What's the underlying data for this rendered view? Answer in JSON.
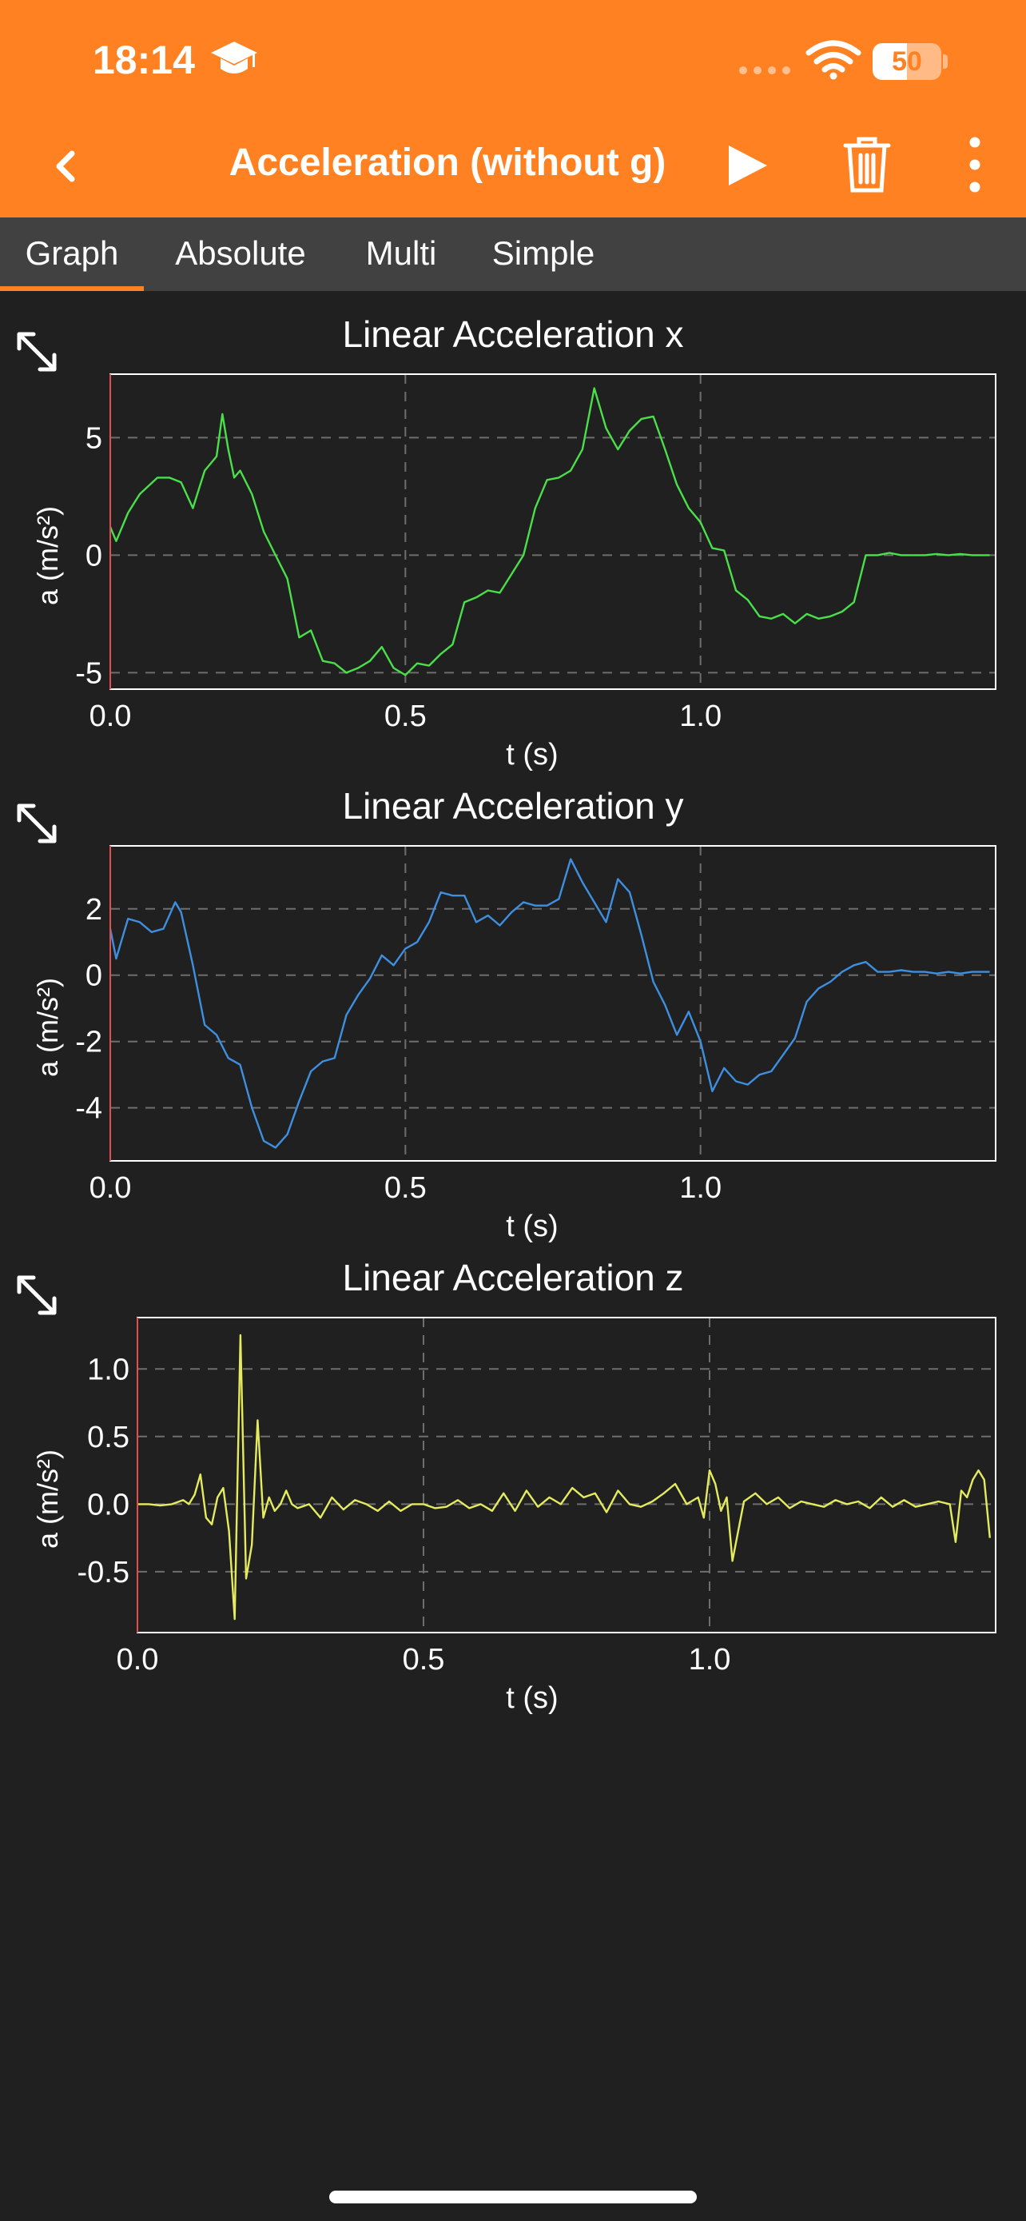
{
  "status_bar": {
    "time": "18:14",
    "battery": "50",
    "battery_level": 0.5,
    "icons": [
      "graduation-cap-icon",
      "cellular-dots-icon",
      "wifi-icon",
      "battery-icon"
    ]
  },
  "app_bar": {
    "title": "Acceleration (without g)",
    "icons": [
      "back-chevron-icon",
      "play-icon",
      "trash-icon",
      "more-vert-icon"
    ]
  },
  "tabs": [
    {
      "label": "Graph",
      "active": true
    },
    {
      "label": "Absolute",
      "active": false
    },
    {
      "label": "Multi",
      "active": false
    },
    {
      "label": "Simple",
      "active": false
    }
  ],
  "colors": {
    "accent": "#FF8121",
    "background": "#202020",
    "tab_bar": "#414141",
    "series_x": "#49E049",
    "series_y": "#3E8FE0",
    "series_z": "#E5EB5E"
  },
  "chart_data": [
    {
      "type": "line",
      "title": "Linear Acceleration x",
      "xlabel": "t (s)",
      "ylabel": "a (m/s²)",
      "xlim": [
        0,
        1.5
      ],
      "ylim": [
        -5.7,
        7.7
      ],
      "xticks": [
        0.0,
        0.5,
        1.0
      ],
      "xtick_labels": [
        "0.0",
        "0.5",
        "1.0"
      ],
      "yticks": [
        -5,
        0,
        5
      ],
      "ytick_labels": [
        "-5",
        "0",
        "5"
      ],
      "grid": true,
      "series": [
        {
          "color": "#49E049",
          "x": [
            0,
            0.01,
            0.03,
            0.05,
            0.08,
            0.1,
            0.12,
            0.14,
            0.16,
            0.18,
            0.19,
            0.2,
            0.21,
            0.22,
            0.24,
            0.26,
            0.28,
            0.3,
            0.32,
            0.34,
            0.36,
            0.38,
            0.4,
            0.42,
            0.44,
            0.46,
            0.48,
            0.5,
            0.52,
            0.54,
            0.56,
            0.58,
            0.6,
            0.62,
            0.64,
            0.66,
            0.68,
            0.7,
            0.72,
            0.74,
            0.76,
            0.78,
            0.8,
            0.82,
            0.84,
            0.86,
            0.88,
            0.9,
            0.92,
            0.94,
            0.96,
            0.98,
            1.0,
            1.02,
            1.04,
            1.06,
            1.08,
            1.1,
            1.12,
            1.14,
            1.16,
            1.18,
            1.2,
            1.22,
            1.24,
            1.26,
            1.28,
            1.3,
            1.32,
            1.34,
            1.36,
            1.38,
            1.4,
            1.42,
            1.44,
            1.46,
            1.48,
            1.49
          ],
          "y": [
            1.2,
            0.6,
            1.8,
            2.6,
            3.3,
            3.3,
            3.1,
            2.0,
            3.6,
            4.2,
            6.0,
            4.5,
            3.3,
            3.6,
            2.6,
            1.0,
            0.0,
            -1.0,
            -3.5,
            -3.2,
            -4.5,
            -4.6,
            -5.0,
            -4.8,
            -4.5,
            -3.9,
            -4.8,
            -5.1,
            -4.6,
            -4.7,
            -4.2,
            -3.8,
            -2.0,
            -1.8,
            -1.5,
            -1.6,
            -0.8,
            0.0,
            2.0,
            3.2,
            3.3,
            3.6,
            4.5,
            7.1,
            5.4,
            4.5,
            5.3,
            5.8,
            5.9,
            4.5,
            3.0,
            2.0,
            1.4,
            0.3,
            0.2,
            -1.5,
            -1.9,
            -2.6,
            -2.7,
            -2.5,
            -2.9,
            -2.5,
            -2.7,
            -2.6,
            -2.4,
            -2.0,
            0.0,
            0.0,
            0.1,
            0.0,
            0.0,
            0.0,
            0.05,
            0.0,
            0.05,
            0.0,
            0.0,
            0.0
          ]
        }
      ]
    },
    {
      "type": "line",
      "title": "Linear Acceleration y",
      "xlabel": "t (s)",
      "ylabel": "a (m/s²)",
      "xlim": [
        0,
        1.5
      ],
      "ylim": [
        -5.6,
        3.9
      ],
      "xticks": [
        0.0,
        0.5,
        1.0
      ],
      "xtick_labels": [
        "0.0",
        "0.5",
        "1.0"
      ],
      "yticks": [
        -4,
        -2,
        0,
        2
      ],
      "ytick_labels": [
        "-4",
        "-2",
        "0",
        "2"
      ],
      "grid": true,
      "series": [
        {
          "color": "#3E8FE0",
          "x": [
            0,
            0.01,
            0.03,
            0.05,
            0.07,
            0.09,
            0.11,
            0.12,
            0.14,
            0.16,
            0.18,
            0.2,
            0.22,
            0.24,
            0.26,
            0.28,
            0.3,
            0.32,
            0.34,
            0.36,
            0.38,
            0.4,
            0.42,
            0.44,
            0.46,
            0.48,
            0.5,
            0.52,
            0.54,
            0.56,
            0.58,
            0.6,
            0.62,
            0.64,
            0.66,
            0.68,
            0.7,
            0.72,
            0.74,
            0.76,
            0.78,
            0.8,
            0.82,
            0.84,
            0.86,
            0.88,
            0.9,
            0.92,
            0.94,
            0.96,
            0.98,
            1.0,
            1.02,
            1.04,
            1.06,
            1.08,
            1.1,
            1.12,
            1.14,
            1.16,
            1.18,
            1.2,
            1.22,
            1.24,
            1.26,
            1.28,
            1.3,
            1.32,
            1.34,
            1.36,
            1.38,
            1.4,
            1.42,
            1.44,
            1.46,
            1.48,
            1.49
          ],
          "y": [
            1.4,
            0.5,
            1.7,
            1.6,
            1.3,
            1.4,
            2.2,
            1.9,
            0.3,
            -1.5,
            -1.8,
            -2.5,
            -2.7,
            -4.0,
            -5.0,
            -5.2,
            -4.8,
            -3.8,
            -2.9,
            -2.6,
            -2.5,
            -1.2,
            -0.6,
            -0.1,
            0.6,
            0.3,
            0.8,
            1.0,
            1.6,
            2.5,
            2.4,
            2.4,
            1.6,
            1.8,
            1.5,
            1.9,
            2.2,
            2.1,
            2.1,
            2.3,
            3.5,
            2.8,
            2.2,
            1.6,
            2.9,
            2.5,
            1.2,
            -0.2,
            -0.9,
            -1.8,
            -1.1,
            -2.0,
            -3.5,
            -2.8,
            -3.2,
            -3.3,
            -3.0,
            -2.9,
            -2.4,
            -1.9,
            -0.8,
            -0.4,
            -0.2,
            0.1,
            0.3,
            0.4,
            0.1,
            0.1,
            0.15,
            0.1,
            0.1,
            0.05,
            0.1,
            0.05,
            0.1,
            0.1,
            0.1
          ]
        }
      ]
    },
    {
      "type": "line",
      "title": "Linear Acceleration z",
      "xlabel": "t (s)",
      "ylabel": "a (m/s²)",
      "xlim": [
        0,
        1.5
      ],
      "ylim": [
        -0.95,
        1.38
      ],
      "xticks": [
        0.0,
        0.5,
        1.0
      ],
      "xtick_labels": [
        "0.0",
        "0.5",
        "1.0"
      ],
      "yticks": [
        -0.5,
        0.0,
        0.5,
        1.0
      ],
      "ytick_labels": [
        "-0.5",
        "0.0",
        "0.5",
        "1.0"
      ],
      "grid": true,
      "series": [
        {
          "color": "#E5EB5E",
          "x": [
            0,
            0.02,
            0.04,
            0.06,
            0.08,
            0.09,
            0.1,
            0.11,
            0.12,
            0.13,
            0.14,
            0.15,
            0.16,
            0.17,
            0.18,
            0.19,
            0.2,
            0.21,
            0.22,
            0.23,
            0.24,
            0.25,
            0.26,
            0.27,
            0.28,
            0.3,
            0.32,
            0.34,
            0.36,
            0.38,
            0.4,
            0.42,
            0.44,
            0.46,
            0.48,
            0.5,
            0.52,
            0.54,
            0.56,
            0.58,
            0.6,
            0.62,
            0.64,
            0.66,
            0.68,
            0.7,
            0.72,
            0.74,
            0.76,
            0.78,
            0.8,
            0.82,
            0.84,
            0.86,
            0.88,
            0.9,
            0.92,
            0.94,
            0.96,
            0.98,
            0.99,
            1.0,
            1.01,
            1.02,
            1.03,
            1.04,
            1.06,
            1.08,
            1.1,
            1.12,
            1.14,
            1.16,
            1.18,
            1.2,
            1.22,
            1.24,
            1.26,
            1.28,
            1.3,
            1.32,
            1.34,
            1.36,
            1.38,
            1.4,
            1.42,
            1.43,
            1.44,
            1.45,
            1.46,
            1.47,
            1.48,
            1.49
          ],
          "y": [
            0.0,
            0.0,
            -0.01,
            0.0,
            0.03,
            0.0,
            0.07,
            0.22,
            -0.1,
            -0.15,
            0.05,
            0.12,
            -0.2,
            -0.85,
            1.25,
            -0.55,
            -0.3,
            0.62,
            -0.1,
            0.05,
            -0.05,
            0.0,
            0.1,
            0.0,
            -0.03,
            0.0,
            -0.1,
            0.05,
            -0.04,
            0.03,
            0.0,
            -0.05,
            0.02,
            -0.05,
            0.0,
            0.0,
            -0.03,
            -0.02,
            0.03,
            -0.03,
            0.0,
            -0.05,
            0.08,
            -0.05,
            0.1,
            -0.02,
            0.05,
            0.0,
            0.12,
            0.05,
            0.08,
            -0.06,
            0.1,
            0.0,
            -0.02,
            0.02,
            0.08,
            0.15,
            0.0,
            0.05,
            -0.1,
            0.25,
            0.15,
            -0.05,
            0.05,
            -0.42,
            0.02,
            0.08,
            0.0,
            0.05,
            -0.03,
            0.02,
            0.0,
            -0.02,
            0.03,
            0.0,
            0.02,
            -0.03,
            0.05,
            -0.02,
            0.03,
            -0.02,
            0.0,
            0.02,
            0.0,
            -0.28,
            0.1,
            0.05,
            0.18,
            0.25,
            0.18,
            -0.25
          ]
        }
      ]
    }
  ]
}
